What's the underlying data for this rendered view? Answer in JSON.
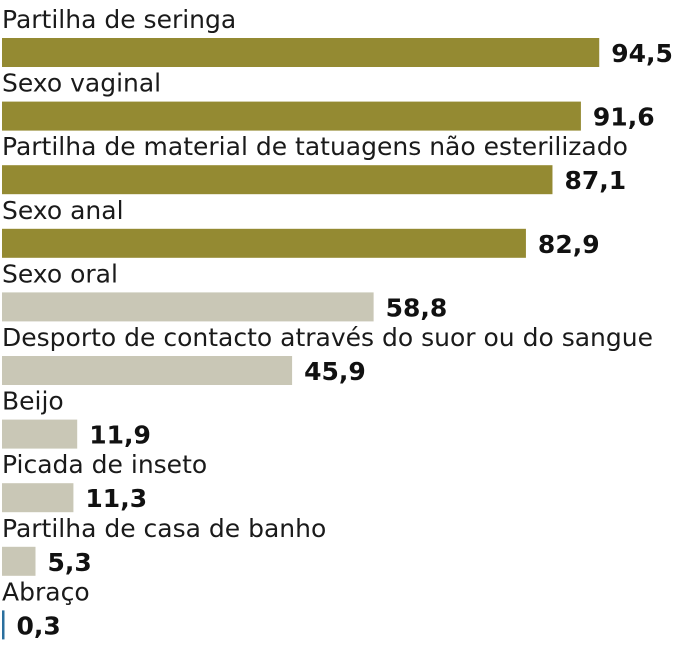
{
  "chart_data": {
    "type": "bar",
    "orientation": "horizontal",
    "categories": [
      "Partilha de seringa",
      "Sexo vaginal",
      "Partilha de material de tatuagens não esterilizado",
      "Sexo anal",
      "Sexo oral",
      "Desporto de contacto através do suor ou do sangue",
      "Beijo",
      "Picada de inseto",
      "Partilha de casa de banho",
      "Abraço"
    ],
    "values": [
      94.5,
      91.6,
      87.1,
      82.9,
      58.8,
      45.9,
      11.9,
      11.3,
      5.3,
      0.3
    ],
    "value_labels": [
      "94,5",
      "91,6",
      "87,1",
      "82,9",
      "58,8",
      "45,9",
      "11,9",
      "11,3",
      "5,3",
      "0,3"
    ],
    "bar_colors": [
      "#948a32",
      "#948a32",
      "#948a32",
      "#948a32",
      "#c9c7b6",
      "#c9c7b6",
      "#c9c7b6",
      "#c9c7b6",
      "#c9c7b6",
      "#2a6f9e"
    ],
    "xlim": [
      0,
      100
    ],
    "grid": false,
    "legend": "none"
  }
}
